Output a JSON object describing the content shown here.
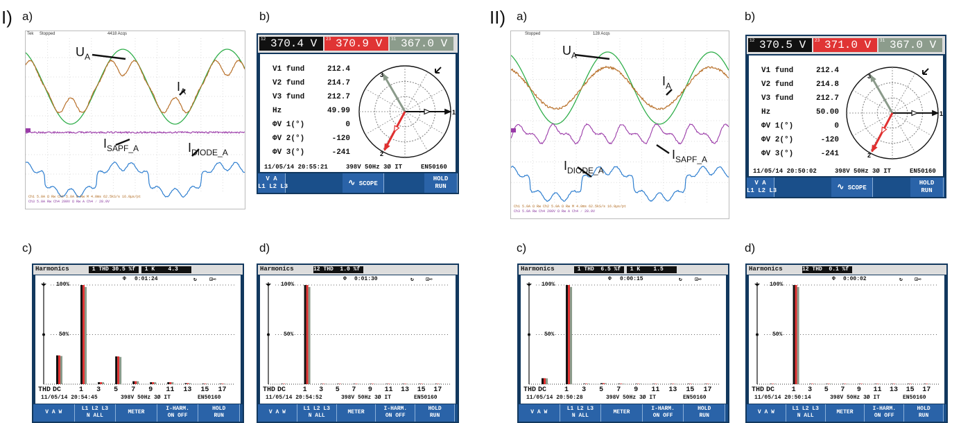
{
  "groups": [
    {
      "roman": "I)",
      "osc": {
        "label": "a)",
        "header": {
          "mode": "Tek",
          "state": "Stopped",
          "acq": "4418 Acqs"
        },
        "annotations": {
          "ua": "U",
          "ua_sub": "A",
          "ia": "I",
          "ia_sub": "A",
          "isapf": "I",
          "isapf_sub": "SAPF_A",
          "idiode": "I",
          "idiode_sub": "DIODE_A"
        },
        "footer": [
          "Ch1  5.0A  Ω Rw    Ch2  5.0A  Ω Rw    M 4.0ms 62.5kS/s   16.0μs/pt",
          "Ch3  5.0A  Rw     Ch4  200V  Ω Rw    A Ch4 ∕ 28.0V"
        ]
      },
      "meter": {
        "label": "b)",
        "readings": [
          {
            "phase": "12",
            "value": "370.4 V"
          },
          {
            "phase": "23",
            "value": "370.9 V"
          },
          {
            "phase": "31",
            "value": "367.0 V"
          }
        ],
        "rows": [
          {
            "name": "V1 fund",
            "value": "212.4"
          },
          {
            "name": "V2 fund",
            "value": "214.7"
          },
          {
            "name": "V3 fund",
            "value": "212.7"
          },
          {
            "name": "Hz",
            "value": "49.99"
          },
          {
            "name": "ΦV 1(°)",
            "value": "0"
          },
          {
            "name": "ΦV 2(°)",
            "value": "-120"
          },
          {
            "name": "ΦV 3(°)",
            "value": "-241"
          }
        ],
        "status": {
          "datetime": "11/05/14 20:55:21",
          "mid": "398V 50Hz 3Ø IT",
          "std": "EN50160"
        },
        "buttons": [
          "V A\nL1 L2 L3",
          "SCOPE",
          "HOLD\nRUN"
        ]
      },
      "harm_c": {
        "label": "c)",
        "title": "Harmonics",
        "thd": " 1 THD 30.5 %f ",
        "k": " 1 K    4.3    ",
        "timer": "0:01:24",
        "status": {
          "datetime": "11/05/14 20:54:45",
          "mid": "398V 50Hz 3Ø IT",
          "std": "EN50160"
        },
        "buttons": [
          "V A W",
          "L1 L2 L3\nN ALL",
          "METER",
          "I-HARM.\nON OFF",
          "HOLD\nRUN"
        ]
      },
      "harm_d": {
        "label": "d)",
        "title": "Harmonics",
        "thd": "12 THD  1.0 %f ",
        "timer": "0:01:30",
        "status": {
          "datetime": "11/05/14 20:54:52",
          "mid": "398V 50Hz 3Ø IT",
          "std": "EN50160"
        },
        "buttons": [
          "V A W",
          "L1 L2 L3\nN ALL",
          "METER",
          "I-HARM.\nON OFF",
          "HOLD\nRUN"
        ]
      }
    },
    {
      "roman": "II)",
      "osc": {
        "label": "a)",
        "header": {
          "mode": "",
          "state": "Stopped",
          "acq": "128 Acqs"
        },
        "annotations": {
          "ua": "U",
          "ua_sub": "A",
          "ia": "I",
          "ia_sub": "A",
          "isapf": "I",
          "isapf_sub": "SAPF_A",
          "idiode": "I",
          "idiode_sub": "DIODE_A"
        },
        "footer": [
          "Ch1  5.0A  Ω Rw    Ch2  5.0A  Ω Rw    M 4.0ms 62.5kS/s   16.0μs/pt",
          "Ch3  5.0A  Rw     Ch4  200V  Ω Rw    A Ch4 ∕ 28.0V"
        ]
      },
      "meter": {
        "label": "b)",
        "readings": [
          {
            "phase": "12",
            "value": "370.5 V"
          },
          {
            "phase": "23",
            "value": "371.0 V"
          },
          {
            "phase": "31",
            "value": "367.0 V"
          }
        ],
        "rows": [
          {
            "name": "V1 fund",
            "value": "212.4"
          },
          {
            "name": "V2 fund",
            "value": "214.8"
          },
          {
            "name": "V3 fund",
            "value": "212.7"
          },
          {
            "name": "Hz",
            "value": "50.00"
          },
          {
            "name": "ΦV 1(°)",
            "value": "0"
          },
          {
            "name": "ΦV 2(°)",
            "value": "-120"
          },
          {
            "name": "ΦV 3(°)",
            "value": "-241"
          }
        ],
        "status": {
          "datetime": "11/05/14 20:50:02",
          "mid": "398V 50Hz 3Ø IT",
          "std": "EN50160"
        },
        "buttons": [
          "V A\nL1 L2 L3",
          "SCOPE",
          "HOLD\nRUN"
        ]
      },
      "harm_c": {
        "label": "c)",
        "title": "Harmonics",
        "thd": " 1 THD  6.5 %f ",
        "k": " 1 K    1.5    ",
        "timer": "0:00:15",
        "status": {
          "datetime": "11/05/14 20:50:28",
          "mid": "398V 50Hz 3Ø IT",
          "std": "EN50160"
        },
        "buttons": [
          "V A W",
          "L1 L2 L3\nN ALL",
          "METER",
          "I-HARM.\nON OFF",
          "HOLD\nRUN"
        ]
      },
      "harm_d": {
        "label": "d)",
        "title": "Harmonics",
        "thd": "12 THD  0.1 %f ",
        "timer": "0:00:02",
        "status": {
          "datetime": "11/05/14 20:50:14",
          "mid": "398V 50Hz 3Ø IT",
          "std": "EN50160"
        },
        "buttons": [
          "V A W",
          "L1 L2 L3\nN ALL",
          "METER",
          "I-HARM.\nON OFF",
          "HOLD\nRUN"
        ]
      }
    }
  ],
  "harmonic_axis": {
    "pct_100": "100%",
    "pct_50": "50%",
    "ticks": [
      "THD",
      "DC",
      "1",
      "3",
      "5",
      "7",
      "9",
      "11",
      "13",
      "15",
      "17"
    ]
  },
  "colors": {
    "phase1": "#111111",
    "phase2": "#e03030",
    "phase3": "#8a9a8a",
    "voltage": "#2fae4a",
    "current": "#b8702a",
    "sapf": "#9a3aa8",
    "diode": "#2f7fd0"
  },
  "chart_data": [
    {
      "type": "bar",
      "name": "I-c",
      "categories": [
        "DC",
        "1",
        "3",
        "5",
        "7",
        "9",
        "11",
        "13",
        "15",
        "17"
      ],
      "series": [
        {
          "values": [
            29,
            100,
            2,
            28,
            3,
            2,
            2,
            1,
            0.5,
            0.5
          ]
        }
      ],
      "ylim": [
        0,
        100
      ]
    },
    {
      "type": "bar",
      "name": "I-d",
      "categories": [
        "DC",
        "1",
        "3",
        "5",
        "7",
        "9",
        "11",
        "13",
        "15",
        "17"
      ],
      "series": [
        {
          "values": [
            0,
            100,
            0,
            0,
            0,
            0,
            0,
            0,
            0,
            0
          ]
        }
      ],
      "ylim": [
        0,
        100
      ]
    },
    {
      "type": "bar",
      "name": "II-c",
      "categories": [
        "DC",
        "1",
        "3",
        "5",
        "7",
        "9",
        "11",
        "13",
        "15",
        "17"
      ],
      "series": [
        {
          "values": [
            6,
            100,
            0.5,
            1,
            0.5,
            0.3,
            0.3,
            0.3,
            0.3,
            0.3
          ]
        }
      ],
      "ylim": [
        0,
        100
      ]
    },
    {
      "type": "bar",
      "name": "II-d",
      "categories": [
        "DC",
        "1",
        "3",
        "5",
        "7",
        "9",
        "11",
        "13",
        "15",
        "17"
      ],
      "series": [
        {
          "values": [
            0,
            100,
            0,
            0,
            0,
            0,
            0,
            0,
            0,
            0
          ]
        }
      ],
      "ylim": [
        0,
        100
      ]
    }
  ]
}
